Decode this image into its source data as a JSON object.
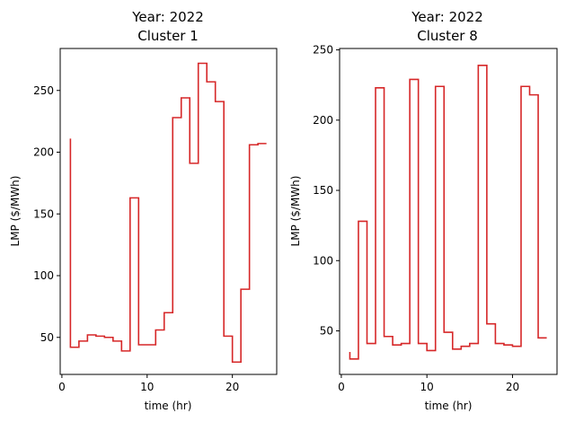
{
  "chart_data": [
    {
      "type": "line",
      "step": "post",
      "title": "Year: 2022",
      "subtitle": "Cluster 1",
      "xlabel": "time (hr)",
      "ylabel": "LMP ($/MWh)",
      "xlim": [
        -0.2,
        25.2
      ],
      "ylim": [
        20,
        284
      ],
      "xticks": [
        0,
        10,
        20
      ],
      "yticks": [
        50,
        100,
        150,
        200,
        250
      ],
      "grid": false,
      "series": [
        {
          "color": "#d62728",
          "x": [
            1,
            2,
            3,
            4,
            5,
            6,
            7,
            8,
            9,
            10,
            11,
            12,
            13,
            14,
            15,
            16,
            17,
            18,
            19,
            20,
            21,
            22,
            23,
            24
          ],
          "y": [
            42,
            47,
            52,
            51,
            50,
            47,
            39,
            163,
            44,
            44,
            56,
            70,
            228,
            244,
            191,
            272,
            257,
            241,
            51,
            30,
            89,
            206,
            207,
            207
          ]
        }
      ],
      "y_start": 211
    },
    {
      "type": "line",
      "step": "post",
      "title": "Year: 2022",
      "subtitle": "Cluster 8",
      "xlabel": "time (hr)",
      "ylabel": "LMP ($/MWh)",
      "xlim": [
        -0.2,
        25.2
      ],
      "ylim": [
        19,
        251
      ],
      "xticks": [
        0,
        10,
        20
      ],
      "yticks": [
        50,
        100,
        150,
        200,
        250
      ],
      "grid": false,
      "series": [
        {
          "color": "#d62728",
          "x": [
            1,
            2,
            3,
            4,
            5,
            6,
            7,
            8,
            9,
            10,
            11,
            12,
            13,
            14,
            15,
            16,
            17,
            18,
            19,
            20,
            21,
            22,
            23,
            24
          ],
          "y": [
            30,
            128,
            41,
            223,
            46,
            40,
            41,
            229,
            41,
            36,
            224,
            49,
            37,
            39,
            41,
            239,
            55,
            41,
            40,
            39,
            224,
            218,
            45,
            45
          ]
        }
      ],
      "y_start": 35
    }
  ]
}
